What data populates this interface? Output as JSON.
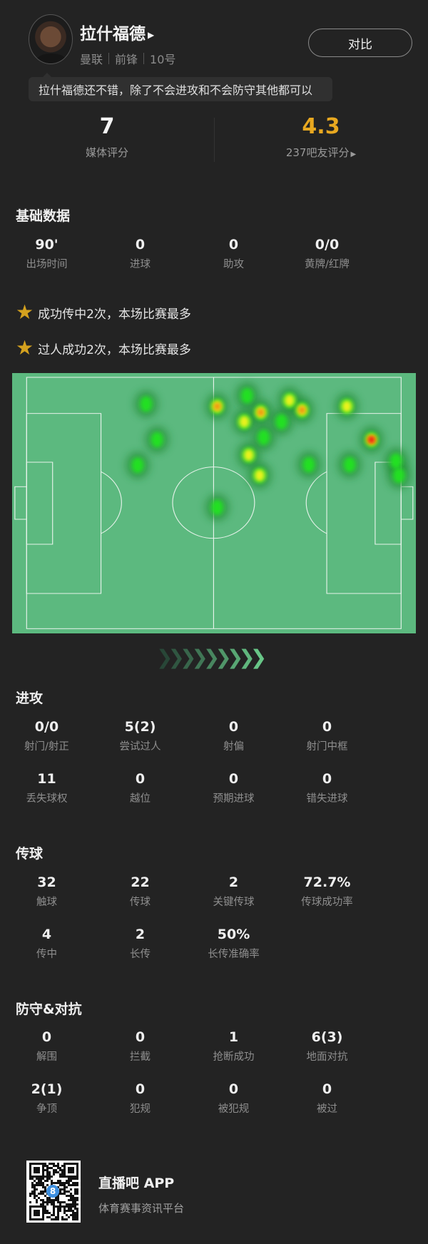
{
  "player": {
    "name": "拉什福德",
    "team": "曼联",
    "position": "前锋",
    "number": "10号",
    "compare_label": "对比",
    "comment": "拉什福德还不错，除了不会进攻和不会防守其他都可以"
  },
  "ratings": {
    "media": {
      "value": "7",
      "label": "媒体评分"
    },
    "fans": {
      "value": "4.3",
      "label": "237吧友评分",
      "color": "#e8a820"
    }
  },
  "basic": {
    "title": "基础数据",
    "stats": [
      {
        "v": "90'",
        "l": "出场时间"
      },
      {
        "v": "0",
        "l": "进球"
      },
      {
        "v": "0",
        "l": "助攻"
      },
      {
        "v": "0/0",
        "l": "黄牌/红牌"
      }
    ]
  },
  "highlights": [
    "成功传中2次，本场比赛最多",
    "过人成功2次，本场比赛最多"
  ],
  "heatmap": {
    "pitch_color": "#5cb97f",
    "line_color": "#e6f2ea"
  },
  "attack": {
    "title": "进攻",
    "stats": [
      {
        "v": "0/0",
        "l": "射门/射正"
      },
      {
        "v": "5(2)",
        "l": "尝试过人"
      },
      {
        "v": "0",
        "l": "射偏"
      },
      {
        "v": "0",
        "l": "射门中框"
      },
      {
        "v": "11",
        "l": "丢失球权"
      },
      {
        "v": "0",
        "l": "越位"
      },
      {
        "v": "0",
        "l": "预期进球"
      },
      {
        "v": "0",
        "l": "错失进球"
      }
    ]
  },
  "passing": {
    "title": "传球",
    "stats": [
      {
        "v": "32",
        "l": "触球"
      },
      {
        "v": "22",
        "l": "传球"
      },
      {
        "v": "2",
        "l": "关键传球"
      },
      {
        "v": "72.7%",
        "l": "传球成功率"
      },
      {
        "v": "4",
        "l": "传中"
      },
      {
        "v": "2",
        "l": "长传"
      },
      {
        "v": "50%",
        "l": "长传准确率"
      }
    ]
  },
  "defense": {
    "title": "防守&对抗",
    "stats": [
      {
        "v": "0",
        "l": "解围"
      },
      {
        "v": "0",
        "l": "拦截"
      },
      {
        "v": "1",
        "l": "抢断成功"
      },
      {
        "v": "6(3)",
        "l": "地面对抗"
      },
      {
        "v": "2(1)",
        "l": "争顶"
      },
      {
        "v": "0",
        "l": "犯规"
      },
      {
        "v": "0",
        "l": "被犯规"
      },
      {
        "v": "0",
        "l": "被过"
      }
    ]
  },
  "footer": {
    "app_name": "直播吧 APP",
    "slogan": "体育赛事资讯平台",
    "qr_badge": "8"
  }
}
